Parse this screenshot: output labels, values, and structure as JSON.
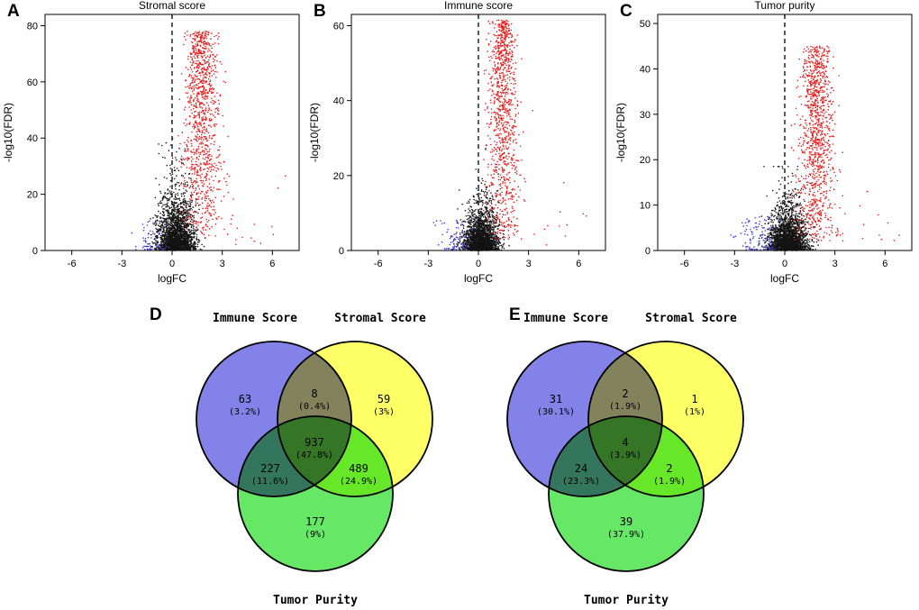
{
  "panels": {
    "a": {
      "label": "A"
    },
    "b": {
      "label": "B"
    },
    "c": {
      "label": "C"
    },
    "d": {
      "label": "D"
    },
    "e": {
      "label": "E"
    }
  },
  "chart_data": [
    {
      "panel": "A",
      "type": "scatter",
      "subtype": "volcano",
      "title": "Stromal score",
      "xlabel": "logFC",
      "ylabel": "-log10(FDR)",
      "xlim": [
        -7.6,
        7.6
      ],
      "ylim": [
        0,
        84
      ],
      "xticks": [
        -6,
        -3,
        0,
        3,
        6
      ],
      "yticks": [
        0,
        20,
        40,
        60,
        80
      ],
      "vline_x": 0,
      "legend_meaning": {
        "red": "up-regulated significant genes",
        "blue": "down-regulated significant genes",
        "black": "not significant"
      },
      "point_groups": [
        {
          "name": "not-significant",
          "color": "#141414",
          "n": 2300,
          "x_mean": 0.25,
          "x_sd": 0.55,
          "x_min": -2.3,
          "x_max": 2.5,
          "y_dist": "exp",
          "y_base": 0,
          "y_scale": 6.5,
          "y_span": 46,
          "y_pow": 1,
          "taper": 0
        },
        {
          "name": "up-regulated",
          "color": "#E81C1C",
          "n": 1050,
          "x_mean": 1.75,
          "x_sd": 0.7,
          "x_min": 0.35,
          "x_max": 6.9,
          "y_dist": "pow",
          "y_base": 4,
          "y_span": 74,
          "y_pow": 0.75,
          "taper": 0.45
        },
        {
          "name": "up-outliers",
          "color": "#E81C1C",
          "n": 14,
          "x_mean": 4.6,
          "x_sd": 1.1,
          "x_min": 3.0,
          "x_max": 7.0,
          "y_dist": "pow",
          "y_base": 2,
          "y_span": 28,
          "y_pow": 1.4,
          "taper": 0
        },
        {
          "name": "down-regulated",
          "color": "#3A3AE8",
          "n": 55,
          "x_mean": -1.25,
          "x_sd": 0.55,
          "x_min": -2.7,
          "x_max": -0.35,
          "y_dist": "pow",
          "y_base": 0.3,
          "y_span": 11,
          "y_pow": 1.8,
          "taper": 0
        }
      ]
    },
    {
      "panel": "B",
      "type": "scatter",
      "subtype": "volcano",
      "title": "Immune score",
      "xlabel": "logFC",
      "ylabel": "-log10(FDR)",
      "xlim": [
        -7.6,
        7.6
      ],
      "ylim": [
        0,
        63
      ],
      "xticks": [
        -6,
        -3,
        0,
        3,
        6
      ],
      "yticks": [
        0,
        20,
        40,
        60
      ],
      "vline_x": 0,
      "legend_meaning": {
        "red": "up-regulated significant genes",
        "blue": "down-regulated significant genes",
        "black": "not significant"
      },
      "point_groups": [
        {
          "name": "not-significant",
          "color": "#141414",
          "n": 2300,
          "x_mean": 0.15,
          "x_sd": 0.5,
          "x_min": -2.3,
          "x_max": 2.3,
          "y_dist": "exp",
          "y_base": 0,
          "y_scale": 3.6,
          "y_span": 27,
          "y_pow": 1,
          "taper": 0
        },
        {
          "name": "up-regulated",
          "color": "#E81C1C",
          "n": 1000,
          "x_mean": 1.45,
          "x_sd": 0.62,
          "x_min": 0.3,
          "x_max": 6.6,
          "y_dist": "pow",
          "y_base": 2.5,
          "y_span": 59,
          "y_pow": 0.75,
          "taper": 0.45
        },
        {
          "name": "up-outliers",
          "color": "#E81C1C",
          "n": 10,
          "x_mean": 4.5,
          "x_sd": 1.0,
          "x_min": 3.0,
          "x_max": 6.7,
          "y_dist": "pow",
          "y_base": 1.5,
          "y_span": 20,
          "y_pow": 1.4,
          "taper": 0
        },
        {
          "name": "down-regulated",
          "color": "#3A3AE8",
          "n": 75,
          "x_mean": -1.35,
          "x_sd": 0.6,
          "x_min": -3.2,
          "x_max": -0.3,
          "y_dist": "pow",
          "y_base": 0.2,
          "y_span": 8,
          "y_pow": 1.8,
          "taper": 0
        }
      ]
    },
    {
      "panel": "C",
      "type": "scatter",
      "subtype": "volcano",
      "title": "Tumor purity",
      "xlabel": "logFC",
      "ylabel": "-log10(FDR)",
      "xlim": [
        -7.6,
        7.6
      ],
      "ylim": [
        0,
        52
      ],
      "xticks": [
        -6,
        -3,
        0,
        3,
        6
      ],
      "yticks": [
        0,
        10,
        20,
        30,
        40,
        50
      ],
      "vline_x": 0,
      "legend_meaning": {
        "red": "up-regulated significant genes",
        "blue": "down-regulated significant genes",
        "black": "not significant"
      },
      "point_groups": [
        {
          "name": "not-significant",
          "color": "#141414",
          "n": 2400,
          "x_mean": 0.2,
          "x_sd": 0.55,
          "x_min": -2.4,
          "x_max": 2.4,
          "y_dist": "exp",
          "y_base": 0,
          "y_scale": 3.0,
          "y_span": 18.5,
          "y_pow": 1,
          "taper": 0
        },
        {
          "name": "up-regulated",
          "color": "#E81C1C",
          "n": 1100,
          "x_mean": 1.9,
          "x_sd": 0.68,
          "x_min": 0.4,
          "x_max": 6.9,
          "y_dist": "pow",
          "y_base": 2,
          "y_span": 43,
          "y_pow": 0.8,
          "taper": 0.4
        },
        {
          "name": "up-outliers",
          "color": "#E81C1C",
          "n": 12,
          "x_mean": 4.8,
          "x_sd": 1.1,
          "x_min": 3.2,
          "x_max": 7.0,
          "y_dist": "pow",
          "y_base": 1.5,
          "y_span": 14,
          "y_pow": 1.4,
          "taper": 0
        },
        {
          "name": "down-regulated",
          "color": "#3A3AE8",
          "n": 115,
          "x_mean": -1.5,
          "x_sd": 0.75,
          "x_min": -3.7,
          "x_max": -0.3,
          "y_dist": "pow",
          "y_base": 0.2,
          "y_span": 7.5,
          "y_pow": 1.6,
          "taper": 0
        }
      ]
    },
    {
      "panel": "D",
      "type": "venn",
      "sets": [
        {
          "name": "Immune Score",
          "fill": "#8282E8",
          "label_color": "#1A1AE0"
        },
        {
          "name": "Stromal Score",
          "fill": "#FFFF66",
          "label_color": "#9C9C00"
        },
        {
          "name": "Tumor Purity",
          "fill": "#66E866",
          "label_color": "#00A800"
        }
      ],
      "regions": {
        "immune_only": {
          "count": "63",
          "pct": "(3.2%)"
        },
        "immune_stromal": {
          "count": "8",
          "pct": "(0.4%)"
        },
        "stromal_only": {
          "count": "59",
          "pct": "(3%)"
        },
        "all_three": {
          "count": "937",
          "pct": "(47.8%)"
        },
        "immune_tumor": {
          "count": "227",
          "pct": "(11.6%)"
        },
        "stromal_tumor": {
          "count": "489",
          "pct": "(24.9%)"
        },
        "tumor_only": {
          "count": "177",
          "pct": "(9%)"
        }
      }
    },
    {
      "panel": "E",
      "type": "venn",
      "sets": [
        {
          "name": "Immune Score",
          "fill": "#8282E8",
          "label_color": "#1A1AE0"
        },
        {
          "name": "Stromal Score",
          "fill": "#FFFF66",
          "label_color": "#9C9C00"
        },
        {
          "name": "Tumor Purity",
          "fill": "#66E866",
          "label_color": "#00A800"
        }
      ],
      "regions": {
        "immune_only": {
          "count": "31",
          "pct": "(30.1%)"
        },
        "immune_stromal": {
          "count": "2",
          "pct": "(1.9%)"
        },
        "stromal_only": {
          "count": "1",
          "pct": "(1%)"
        },
        "all_three": {
          "count": "4",
          "pct": "(3.9%)"
        },
        "immune_tumor": {
          "count": "24",
          "pct": "(23.3%)"
        },
        "stromal_tumor": {
          "count": "2",
          "pct": "(1.9%)"
        },
        "tumor_only": {
          "count": "39",
          "pct": "(37.9%)"
        }
      }
    }
  ]
}
